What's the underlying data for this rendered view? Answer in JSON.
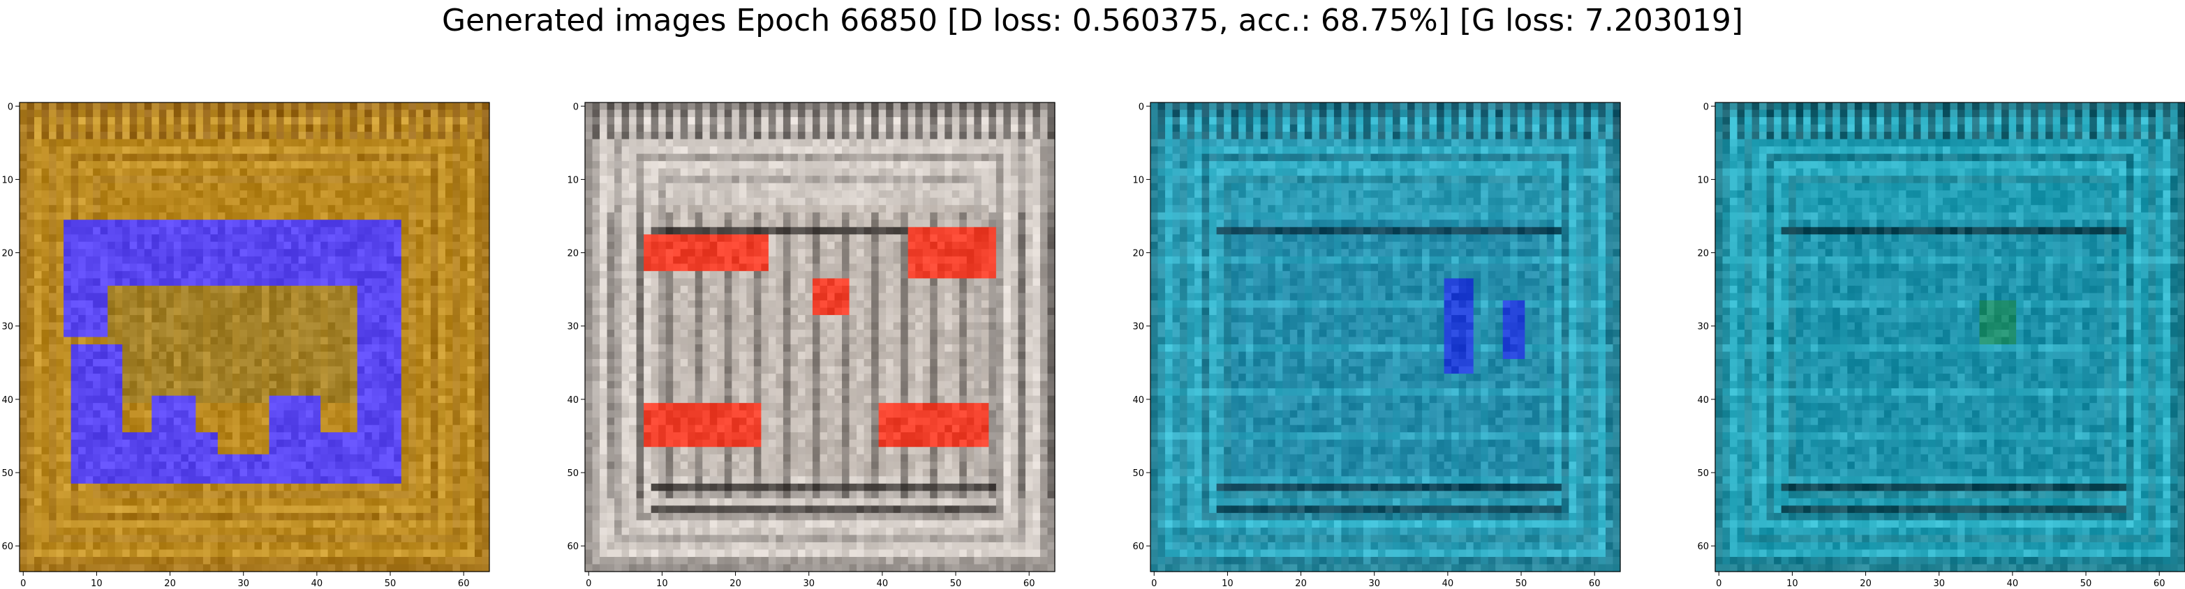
{
  "figure": {
    "title": "Generated images Epoch 66850 [D loss: 0.560375, acc.: 68.75%] [G loss: 7.203019]"
  },
  "chart_data": [
    {
      "type": "heatmap",
      "panel": 1,
      "x_ticks": [
        "0",
        "10",
        "20",
        "30",
        "40",
        "50",
        "60"
      ],
      "y_ticks": [
        "0",
        "10",
        "20",
        "30",
        "40",
        "50",
        "60"
      ],
      "xlim": [
        -0.5,
        63.5
      ],
      "ylim": [
        63.5,
        -0.5
      ],
      "grid": false,
      "palette": {
        "background": "#b8861c",
        "frame": "#d4a63a",
        "shape": "#5a47f0",
        "inner": "#8f7a30",
        "edge": "#7a4a10"
      }
    },
    {
      "type": "heatmap",
      "panel": 2,
      "x_ticks": [
        "0",
        "10",
        "20",
        "30",
        "40",
        "50",
        "60"
      ],
      "y_ticks": [
        "0",
        "10",
        "20",
        "30",
        "40",
        "50",
        "60"
      ],
      "xlim": [
        -0.5,
        63.5
      ],
      "ylim": [
        63.5,
        -0.5
      ],
      "grid": false,
      "palette": {
        "background": "#cfc8c2",
        "frame": "#e6dfda",
        "shape": "#f2412c",
        "inner": "#b8aea6",
        "edge": "#1e1a18"
      }
    },
    {
      "type": "heatmap",
      "panel": 3,
      "x_ticks": [
        "0",
        "10",
        "20",
        "30",
        "40",
        "50",
        "60"
      ],
      "y_ticks": [
        "0",
        "10",
        "20",
        "30",
        "40",
        "50",
        "60"
      ],
      "xlim": [
        -0.5,
        63.5
      ],
      "ylim": [
        63.5,
        -0.5
      ],
      "grid": false,
      "palette": {
        "background": "#2b9ab3",
        "frame": "#3fc6dc",
        "shape": "#2343d8",
        "inner": "#1f7fa0",
        "edge": "#0a2a3a"
      }
    },
    {
      "type": "heatmap",
      "panel": 4,
      "x_ticks": [
        "0",
        "10",
        "20",
        "30",
        "40",
        "50",
        "60"
      ],
      "y_ticks": [
        "0",
        "10",
        "20",
        "30",
        "40",
        "50",
        "60"
      ],
      "xlim": [
        -0.5,
        63.5
      ],
      "ylim": [
        63.5,
        -0.5
      ],
      "grid": false,
      "palette": {
        "background": "#1e9ab0",
        "frame": "#3ec4d8",
        "shape": "#1f8e6e",
        "inner": "#1a86a0",
        "edge": "#0a2832"
      }
    }
  ]
}
